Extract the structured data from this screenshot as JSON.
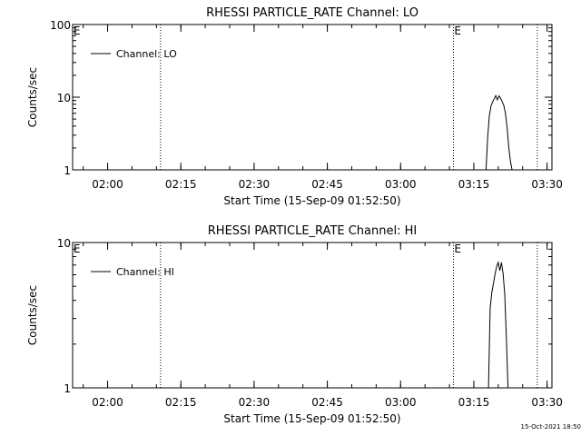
{
  "chart_data": [
    {
      "type": "line",
      "title": "RHESSI PARTICLE_RATE Channel: LO",
      "xlabel": "Start Time (15-Sep-09 01:52:50)",
      "ylabel": "Counts/sec",
      "y_scale": "log",
      "ylim": [
        1,
        100
      ],
      "y_ticks": [
        {
          "value": 1,
          "label": "1"
        },
        {
          "value": 10,
          "label": "10"
        },
        {
          "value": 100,
          "label": "100"
        }
      ],
      "xlim": [
        "01:52:50",
        "03:31:00"
      ],
      "x_ticks": [
        {
          "value": "02:00",
          "label": "02:00"
        },
        {
          "value": "02:15",
          "label": "02:15"
        },
        {
          "value": "02:30",
          "label": "02:30"
        },
        {
          "value": "02:45",
          "label": "02:45"
        },
        {
          "value": "03:00",
          "label": "03:00"
        },
        {
          "value": "03:15",
          "label": "03:15"
        },
        {
          "value": "03:30",
          "label": "03:30"
        }
      ],
      "legend": {
        "label": "Channel: LO",
        "placement": "top-left"
      },
      "vlines": [
        "02:10:50",
        "03:10:50",
        "03:28:00"
      ],
      "markers": [
        {
          "label": "E",
          "x": "01:53:00"
        },
        {
          "label": "E",
          "x": "03:11:00"
        }
      ],
      "series": [
        {
          "name": "Channel: LO",
          "x": [
            "03:17:30",
            "03:17:50",
            "03:18:10",
            "03:18:30",
            "03:18:50",
            "03:19:10",
            "03:19:30",
            "03:19:50",
            "03:20:10",
            "03:20:30",
            "03:20:50",
            "03:21:10",
            "03:21:30",
            "03:21:50",
            "03:22:10",
            "03:22:30",
            "03:22:50"
          ],
          "y": [
            1,
            2.8,
            5.5,
            7.5,
            8.6,
            9.5,
            10.5,
            9.2,
            10.4,
            9.6,
            8.6,
            7.6,
            5.8,
            3.7,
            2.0,
            1.3,
            1
          ]
        }
      ]
    },
    {
      "type": "line",
      "title": "RHESSI PARTICLE_RATE Channel: HI",
      "xlabel": "Start Time (15-Sep-09 01:52:50)",
      "ylabel": "Counts/sec",
      "y_scale": "log",
      "ylim": [
        1,
        10
      ],
      "y_ticks": [
        {
          "value": 1,
          "label": "1"
        },
        {
          "value": 10,
          "label": "10"
        }
      ],
      "xlim": [
        "01:52:50",
        "03:31:00"
      ],
      "x_ticks": [
        {
          "value": "02:00",
          "label": "02:00"
        },
        {
          "value": "02:15",
          "label": "02:15"
        },
        {
          "value": "02:30",
          "label": "02:30"
        },
        {
          "value": "02:45",
          "label": "02:45"
        },
        {
          "value": "03:00",
          "label": "03:00"
        },
        {
          "value": "03:15",
          "label": "03:15"
        },
        {
          "value": "03:30",
          "label": "03:30"
        }
      ],
      "legend": {
        "label": "Channel: HI",
        "placement": "top-left"
      },
      "vlines": [
        "02:10:50",
        "03:10:50",
        "03:28:00"
      ],
      "markers": [
        {
          "label": "E",
          "x": "01:53:00"
        },
        {
          "label": "E",
          "x": "03:11:00"
        }
      ],
      "series": [
        {
          "name": "Channel: HI",
          "x": [
            "03:18:00",
            "03:18:20",
            "03:18:40",
            "03:19:00",
            "03:19:20",
            "03:19:40",
            "03:20:00",
            "03:20:20",
            "03:20:40",
            "03:21:00",
            "03:21:20",
            "03:21:40",
            "03:22:00"
          ],
          "y": [
            1,
            3.5,
            4.5,
            5.2,
            6.0,
            6.8,
            7.3,
            6.4,
            7.3,
            6.1,
            4.4,
            2.2,
            1
          ]
        }
      ]
    }
  ],
  "footer": {
    "timestamp": "15-Oct-2021 18:50"
  }
}
